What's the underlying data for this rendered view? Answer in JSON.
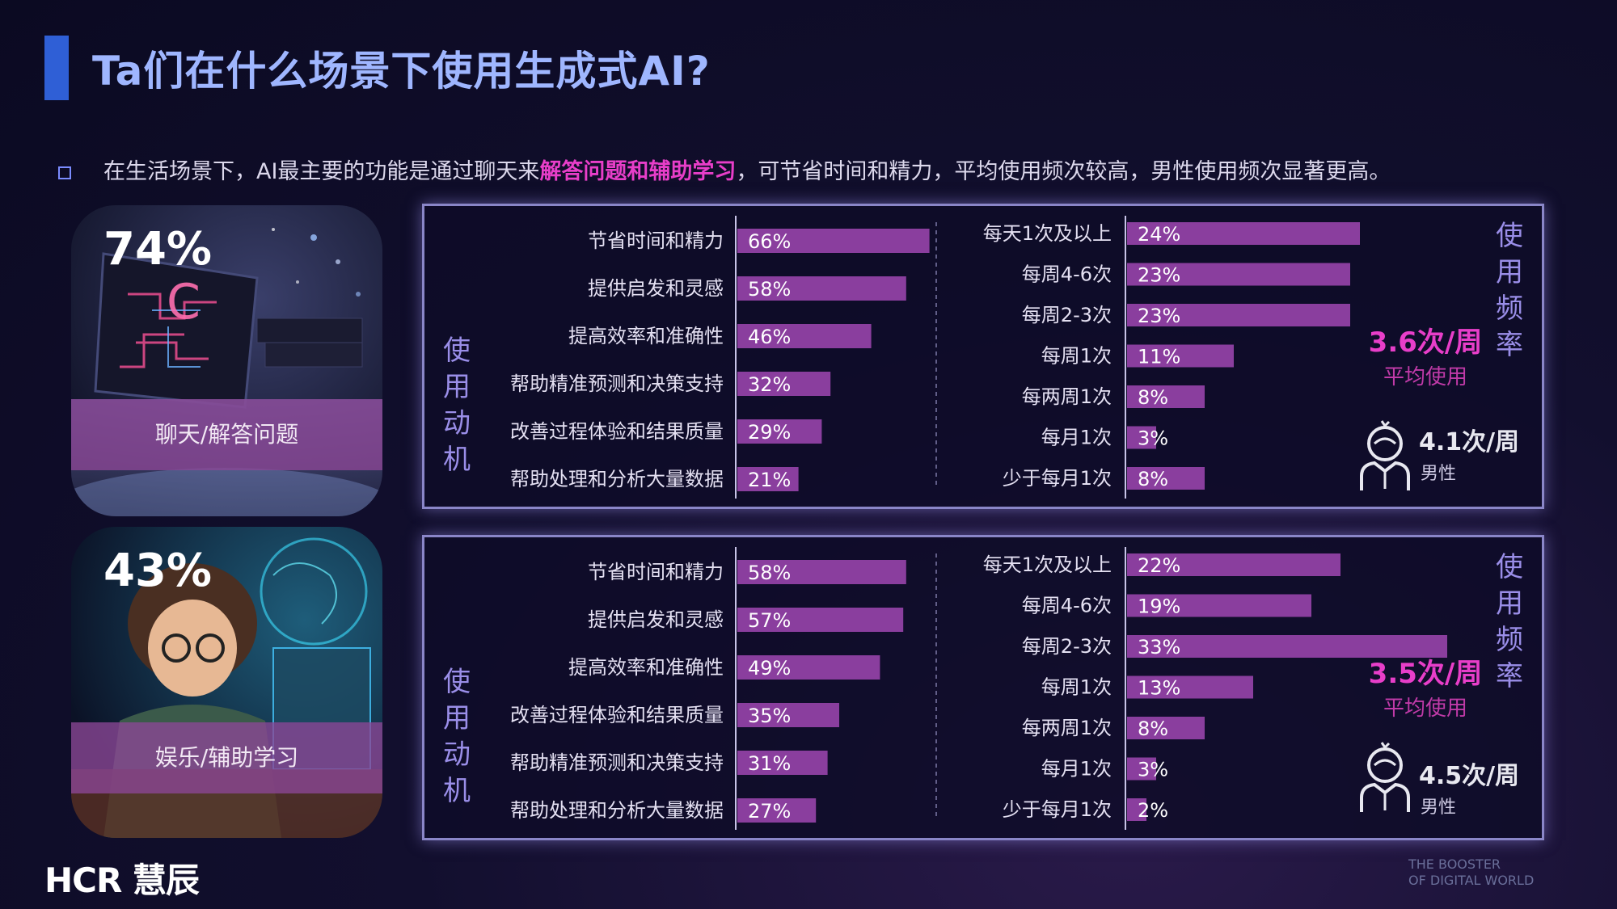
{
  "header": {
    "title": "Ta们在什么场景下使用生成式AI?",
    "subtitle_pre": "在生活场景下，AI最主要的功能是通过聊天来",
    "subtitle_highlight": "解答问题和辅助学习",
    "subtitle_post": "，可节省时间和精力，平均使用频次较高，男性使用频次显著更高。"
  },
  "colors": {
    "accent": "#e83ec9",
    "bar": "#8a3e9e",
    "title": "#9fb6ff",
    "panel_border": "#8a86c8"
  },
  "cards": [
    {
      "pct": "74%",
      "label": "聊天/解答问题"
    },
    {
      "pct": "43%",
      "label": "娱乐/辅助学习"
    }
  ],
  "chart_data": [
    {
      "type": "bar",
      "orientation": "horizontal",
      "group_label": "使用动机",
      "categories": [
        "节省时间和精力",
        "提供启发和灵感",
        "提高效率和准确性",
        "帮助精准预测和决策支持",
        "改善过程体验和结果质量",
        "帮助处理和分析大量数据"
      ],
      "values": [
        66,
        58,
        46,
        32,
        29,
        21
      ],
      "labels": [
        "66%",
        "58%",
        "46%",
        "32%",
        "29%",
        "21%"
      ]
    },
    {
      "type": "bar",
      "orientation": "horizontal",
      "group_label": "使用频率",
      "categories": [
        "每天1次及以上",
        "每周4-6次",
        "每周2-3次",
        "每周1次",
        "每两周1次",
        "每月1次",
        "少于每月1次"
      ],
      "values": [
        24,
        23,
        23,
        11,
        8,
        3,
        8
      ],
      "labels": [
        "24%",
        "23%",
        "23%",
        "11%",
        "8%",
        "3%",
        "8%"
      ],
      "avg_value": "3.6次/周",
      "avg_label": "平均使用",
      "male_value": "4.1次/周",
      "male_label": "男性"
    },
    {
      "type": "bar",
      "orientation": "horizontal",
      "group_label": "使用动机",
      "categories": [
        "节省时间和精力",
        "提供启发和灵感",
        "提高效率和准确性",
        "改善过程体验和结果质量",
        "帮助精准预测和决策支持",
        "帮助处理和分析大量数据"
      ],
      "values": [
        58,
        57,
        49,
        35,
        31,
        27
      ],
      "labels": [
        "58%",
        "57%",
        "49%",
        "35%",
        "31%",
        "27%"
      ]
    },
    {
      "type": "bar",
      "orientation": "horizontal",
      "group_label": "使用频率",
      "categories": [
        "每天1次及以上",
        "每周4-6次",
        "每周2-3次",
        "每周1次",
        "每两周1次",
        "每月1次",
        "少于每月1次"
      ],
      "values": [
        22,
        19,
        33,
        13,
        8,
        3,
        2
      ],
      "labels": [
        "22%",
        "19%",
        "33%",
        "13%",
        "8%",
        "3%",
        "2%"
      ],
      "avg_value": "3.5次/周",
      "avg_label": "平均使用",
      "male_value": "4.5次/周",
      "male_label": "男性"
    }
  ],
  "footer": {
    "logo": "HCR 慧辰",
    "tagline_1": "THE BOOSTER",
    "tagline_2": "OF DIGITAL WORLD"
  }
}
